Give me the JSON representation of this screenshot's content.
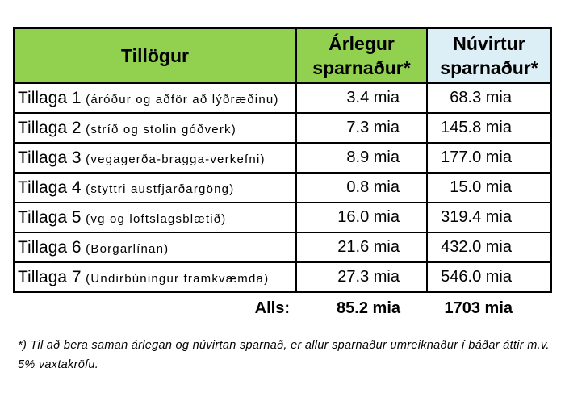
{
  "table": {
    "headers": [
      "Tillögur",
      "Árlegur sparnaður*",
      "Núvirtur sparnaður*"
    ],
    "rows": [
      {
        "main": "Tillaga 1",
        "detail": "(áróður og aðför að lýðræðinu)",
        "annual": "3.4 mia",
        "pv": "68.3 mia"
      },
      {
        "main": "Tillaga 2",
        "detail": "(stríð og stolin góðverk)",
        "annual": "7.3 mia",
        "pv": "145.8 mia"
      },
      {
        "main": "Tillaga 3",
        "detail": "(vegagerða-bragga-verkefni)",
        "annual": "8.9 mia",
        "pv": "177.0 mia"
      },
      {
        "main": "Tillaga 4",
        "detail": "(styttri austfjarðargöng)",
        "annual": "0.8 mia",
        "pv": "15.0 mia"
      },
      {
        "main": "Tillaga 5",
        "detail": "(vg og loftslagsblætið)",
        "annual": "16.0 mia",
        "pv": "319.4 mia"
      },
      {
        "main": "Tillaga 6",
        "detail": "(Borgarlínan)",
        "annual": "21.6 mia",
        "pv": "432.0 mia"
      },
      {
        "main": "Tillaga 7",
        "detail": "(Undirbúningur framkvæmda)",
        "annual": "27.3 mia",
        "pv": "546.0 mia"
      }
    ],
    "total": {
      "label": "Alls:",
      "annual": "85.2 mia",
      "pv": "1703 mia"
    }
  },
  "footnote": "*) Til að bera saman árlegan og núvirtan sparnað, er allur sparnaður umreiknaður í báðar áttir m.v. 5% vaxtakröfu.",
  "colors": {
    "header_green": "#92d050",
    "header_blue": "#dceef6"
  }
}
